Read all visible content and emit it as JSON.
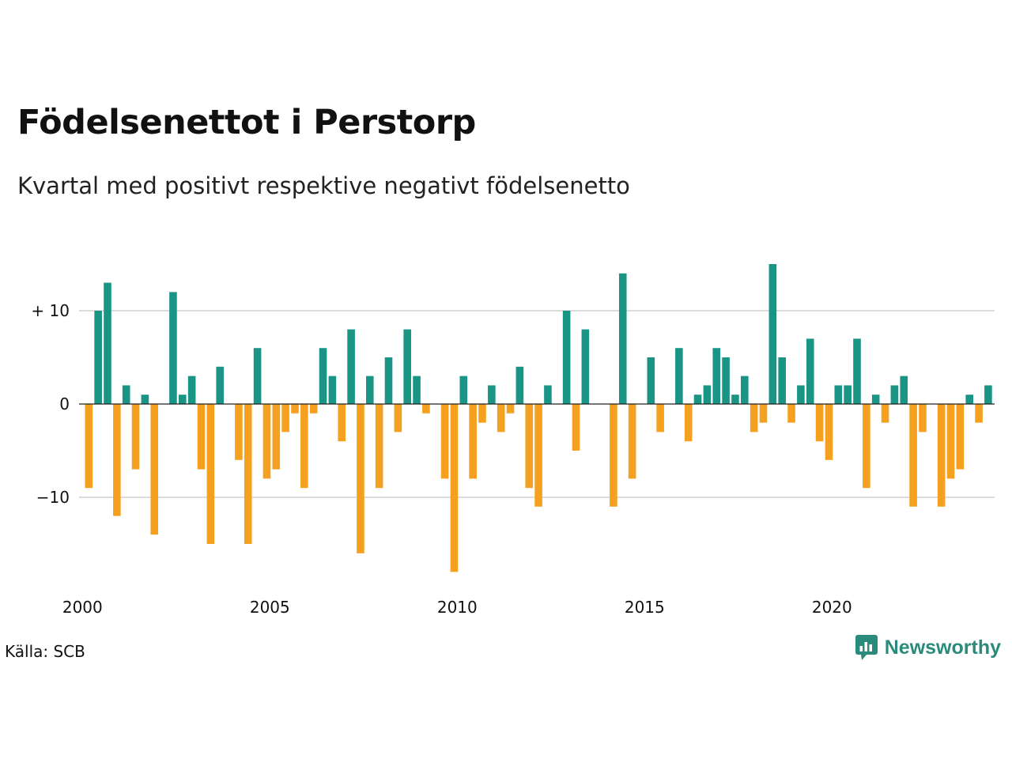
{
  "header": {
    "title": "Födelsenettot i Perstorp",
    "subtitle": "Kvartal med positivt respektive negativt födelsenetto"
  },
  "footer": {
    "source": "Källa: SCB",
    "brand": "Newsworthy"
  },
  "colors": {
    "positive": "#1a9585",
    "negative": "#f5a11f",
    "grid": "#dcdcdc",
    "brand": "#2a8a7c"
  },
  "chart_data": {
    "type": "bar",
    "title": "Födelsenettot i Perstorp",
    "subtitle": "Kvartal med positivt respektive negativt födelsenetto",
    "x_unit": "quarter",
    "start": "2000-Q1",
    "x_ticks": [
      "2000",
      "2005",
      "2010",
      "2015",
      "2020"
    ],
    "y_ticks": [
      {
        "value": 10,
        "label": "+ 10"
      },
      {
        "value": 0,
        "label": "0"
      },
      {
        "value": -10,
        "label": "−10"
      }
    ],
    "ylim": [
      -18,
      15
    ],
    "grid": true,
    "values": [
      -9,
      10,
      13,
      -12,
      2,
      -7,
      1,
      -14,
      0,
      12,
      1,
      3,
      -7,
      -15,
      4,
      0,
      -6,
      -15,
      6,
      -8,
      -7,
      -3,
      -1,
      -9,
      -1,
      6,
      3,
      -4,
      8,
      -16,
      3,
      -9,
      5,
      -3,
      8,
      3,
      -1,
      0,
      -8,
      -18,
      3,
      -8,
      -2,
      2,
      -3,
      -1,
      4,
      -9,
      -11,
      2,
      0,
      10,
      -5,
      8,
      0,
      0,
      -11,
      14,
      -8,
      0,
      5,
      -3,
      0,
      6,
      -4,
      1,
      2,
      6,
      5,
      1,
      3,
      -3,
      -2,
      15,
      5,
      -2,
      2,
      7,
      -4,
      -6,
      2,
      2,
      7,
      -9,
      1,
      -2,
      2,
      3,
      -11,
      -3,
      0,
      -11,
      -8,
      -7,
      1,
      -2,
      2
    ]
  }
}
